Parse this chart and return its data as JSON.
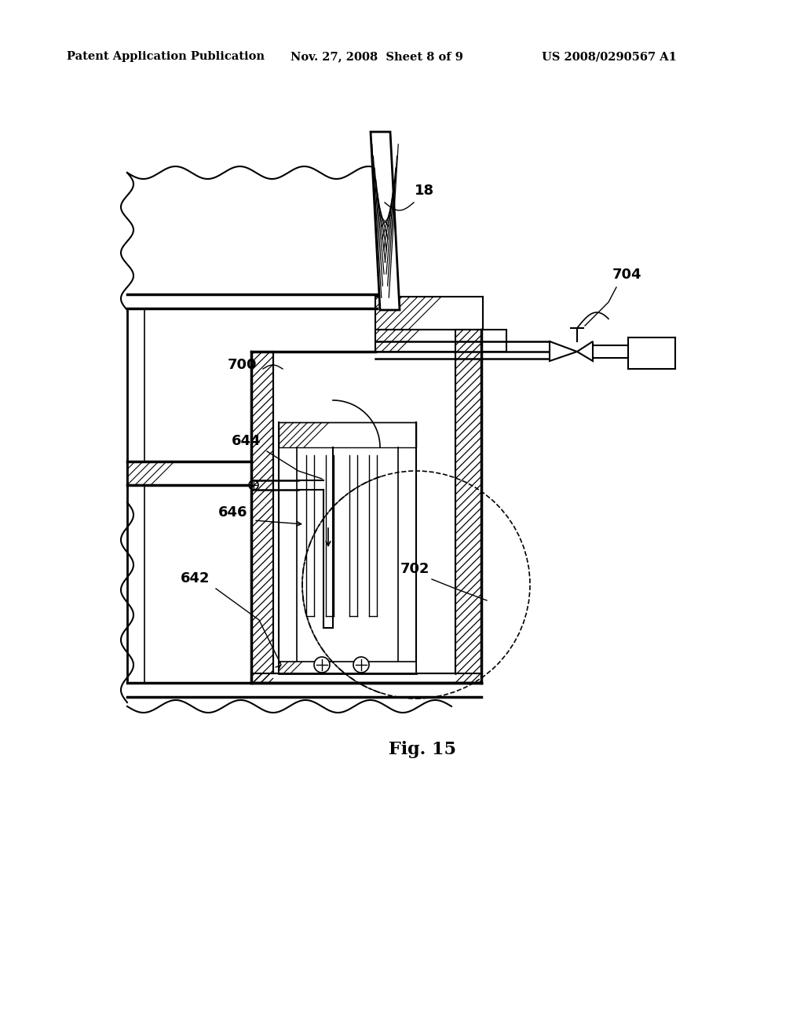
{
  "bg": "#ffffff",
  "lc": "#000000",
  "header_left": "Patent Application Publication",
  "header_center": "Nov. 27, 2008  Sheet 8 of 9",
  "header_right": "US 2008/0290567 A1",
  "fig_label": "Fig. 15"
}
